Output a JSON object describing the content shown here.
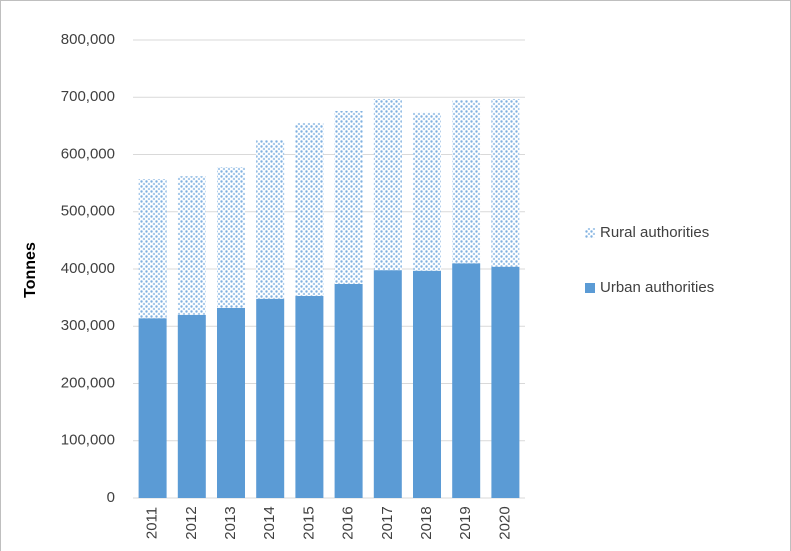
{
  "chart_data": {
    "type": "stacked-bar",
    "y_label": "Tonnes",
    "categories": [
      "2011",
      "2012",
      "2013",
      "2014",
      "2015",
      "2016",
      "2017",
      "2018",
      "2019",
      "2020"
    ],
    "series": [
      {
        "name": "Urban authorities",
        "color": "#5b9bd5",
        "pattern": "solid",
        "values": [
          314000,
          320000,
          332000,
          348000,
          353000,
          374000,
          398000,
          397000,
          410000,
          404000
        ]
      },
      {
        "name": "Rural authorities",
        "color": "#5b9bd5",
        "pattern": "dotted",
        "values": [
          243000,
          242000,
          246000,
          277000,
          302000,
          302000,
          299000,
          276000,
          285000,
          293000
        ]
      }
    ],
    "ylim": [
      0,
      800000
    ],
    "yticks": [
      0,
      {
        "value": 100000,
        "label": "100,000"
      },
      {
        "value": 200000,
        "label": "200,000"
      },
      {
        "value": 300000,
        "label": "300,000"
      },
      {
        "value": 400000,
        "label": "400,000"
      },
      {
        "value": 500000,
        "label": "500,000"
      },
      {
        "value": 600000,
        "label": "600,000"
      },
      {
        "value": 700000,
        "label": "700,000"
      },
      {
        "value": 800000,
        "label": "800,000"
      }
    ],
    "grid": true,
    "legend": "right"
  }
}
